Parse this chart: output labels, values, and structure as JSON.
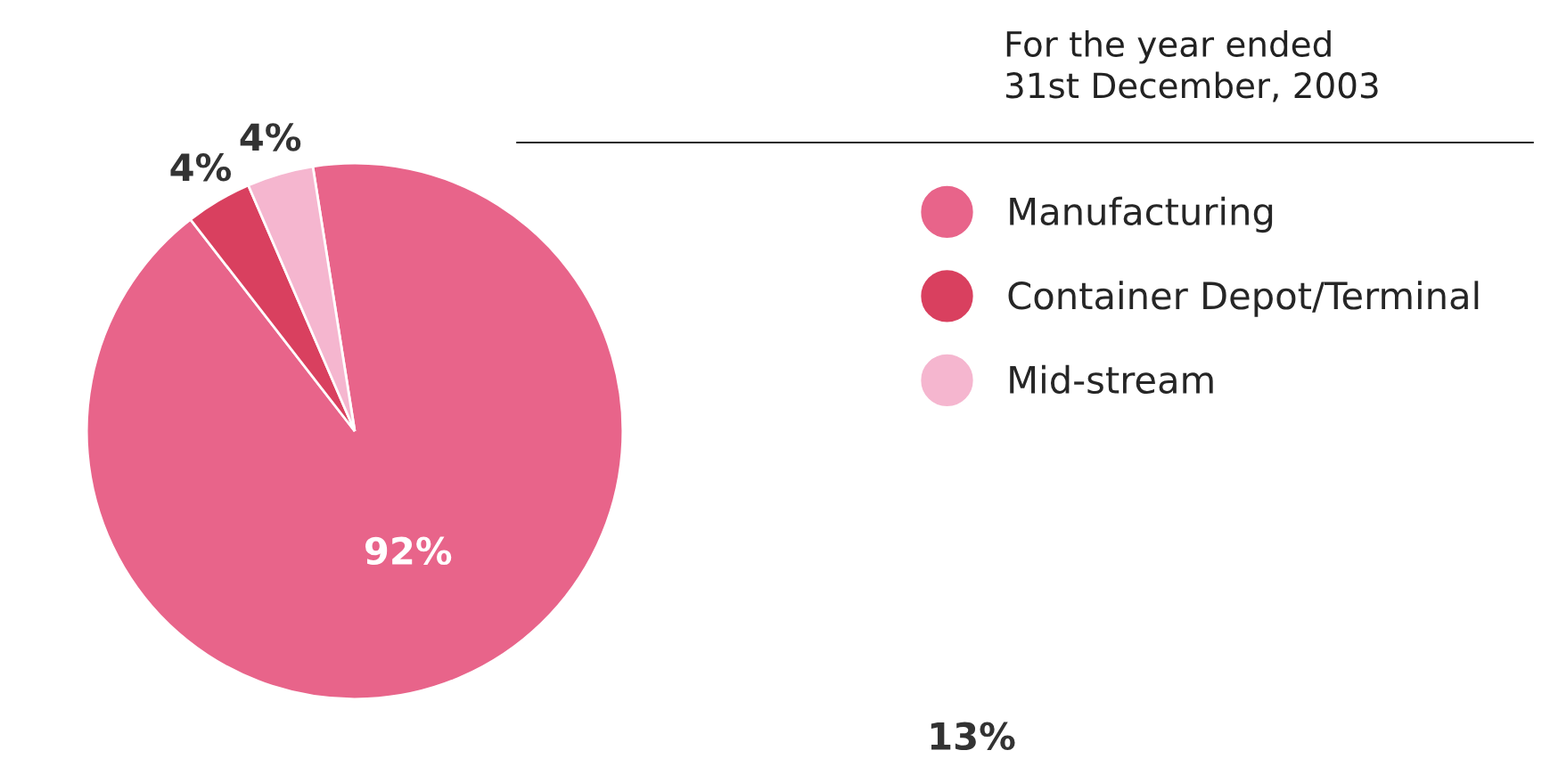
{
  "chart_data": {
    "type": "pie",
    "title": "For the year ended\n31st December, 2003",
    "categories": [
      "Manufacturing",
      "Container Depot/Terminal",
      "Mid-stream"
    ],
    "values": [
      92,
      4,
      4
    ],
    "colors": [
      "#e8648a",
      "#d9405f",
      "#f5b6cf"
    ],
    "value_labels": [
      "92%",
      "4%",
      "4%"
    ],
    "legend": "right",
    "annotations": [
      "13%"
    ]
  }
}
